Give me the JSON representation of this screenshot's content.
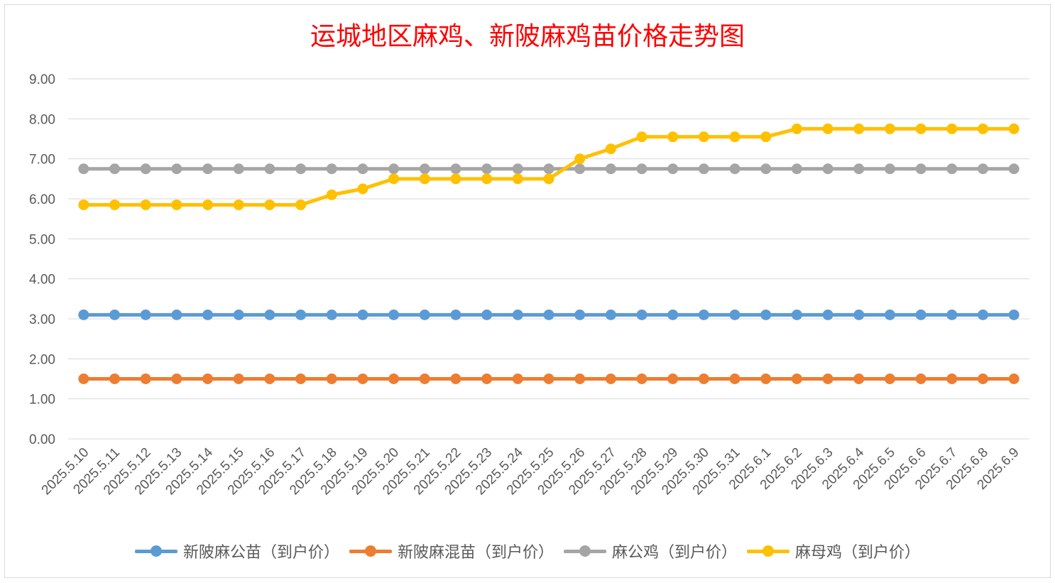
{
  "chart_data": {
    "type": "line",
    "title": "运城地区麻鸡、新陂麻鸡苗价格走势图",
    "xlabel": "",
    "ylabel": "",
    "ylim": [
      0,
      9
    ],
    "ytick_step": 1,
    "ytick_labels": [
      "0.00",
      "1.00",
      "2.00",
      "3.00",
      "4.00",
      "5.00",
      "6.00",
      "7.00",
      "8.00",
      "9.00"
    ],
    "grid": true,
    "legend_position": "bottom",
    "categories": [
      "2025.5.10",
      "2025.5.11",
      "2025.5.12",
      "2025.5.13",
      "2025.5.14",
      "2025.5.15",
      "2025.5.16",
      "2025.5.17",
      "2025.5.18",
      "2025.5.19",
      "2025.5.20",
      "2025.5.21",
      "2025.5.22",
      "2025.5.23",
      "2025.5.24",
      "2025.5.25",
      "2025.5.26",
      "2025.5.27",
      "2025.5.28",
      "2025.5.29",
      "2025.5.30",
      "2025.5.31",
      "2025.6.1",
      "2025.6.2",
      "2025.6.3",
      "2025.6.4",
      "2025.6.5",
      "2025.6.6",
      "2025.6.7",
      "2025.6.8",
      "2025.6.9"
    ],
    "series": [
      {
        "name": "新陂麻公苗（到户价）",
        "color": "#5b9bd5",
        "values": [
          3.1,
          3.1,
          3.1,
          3.1,
          3.1,
          3.1,
          3.1,
          3.1,
          3.1,
          3.1,
          3.1,
          3.1,
          3.1,
          3.1,
          3.1,
          3.1,
          3.1,
          3.1,
          3.1,
          3.1,
          3.1,
          3.1,
          3.1,
          3.1,
          3.1,
          3.1,
          3.1,
          3.1,
          3.1,
          3.1,
          3.1
        ]
      },
      {
        "name": "新陂麻混苗（到户价）",
        "color": "#ed7d31",
        "values": [
          1.5,
          1.5,
          1.5,
          1.5,
          1.5,
          1.5,
          1.5,
          1.5,
          1.5,
          1.5,
          1.5,
          1.5,
          1.5,
          1.5,
          1.5,
          1.5,
          1.5,
          1.5,
          1.5,
          1.5,
          1.5,
          1.5,
          1.5,
          1.5,
          1.5,
          1.5,
          1.5,
          1.5,
          1.5,
          1.5,
          1.5
        ]
      },
      {
        "name": "麻公鸡（到户价）",
        "color": "#a5a5a5",
        "values": [
          6.75,
          6.75,
          6.75,
          6.75,
          6.75,
          6.75,
          6.75,
          6.75,
          6.75,
          6.75,
          6.75,
          6.75,
          6.75,
          6.75,
          6.75,
          6.75,
          6.75,
          6.75,
          6.75,
          6.75,
          6.75,
          6.75,
          6.75,
          6.75,
          6.75,
          6.75,
          6.75,
          6.75,
          6.75,
          6.75,
          6.75
        ]
      },
      {
        "name": "麻母鸡（到户价）",
        "color": "#ffc000",
        "values": [
          5.85,
          5.85,
          5.85,
          5.85,
          5.85,
          5.85,
          5.85,
          5.85,
          6.1,
          6.25,
          6.5,
          6.5,
          6.5,
          6.5,
          6.5,
          6.5,
          7.0,
          7.25,
          7.55,
          7.55,
          7.55,
          7.55,
          7.55,
          7.75,
          7.75,
          7.75,
          7.75,
          7.75,
          7.75,
          7.75,
          7.75
        ]
      }
    ]
  }
}
